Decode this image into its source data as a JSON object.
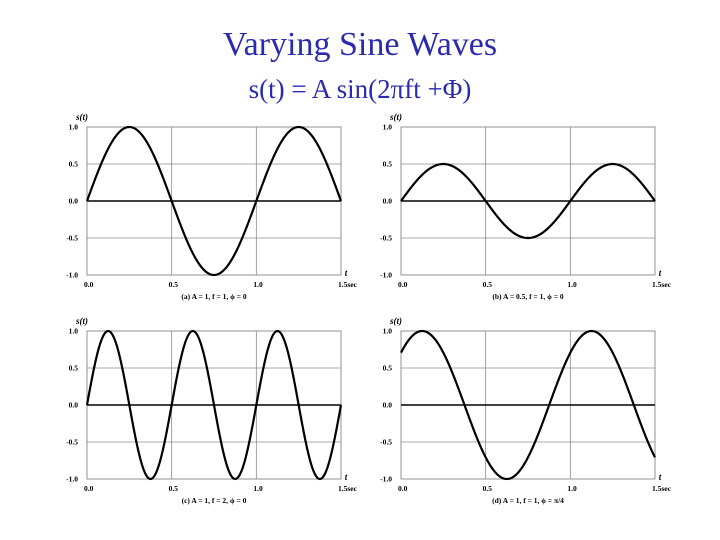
{
  "page": {
    "title": "Varying Sine Waves",
    "subtitle": "s(t) = A sin(2πft +Φ)"
  },
  "colors": {
    "title": "#2b2bb0",
    "curve": "#000000",
    "grid": "#8c8c8c",
    "axis": "#000000"
  },
  "chart_data": [
    {
      "type": "line",
      "id": "a",
      "ylabel": "s(t)",
      "xlabel": "t",
      "caption": "(a) A = 1, f = 1, ϕ = 0",
      "params": {
        "A": 1,
        "f": 1,
        "phi": 0
      },
      "xlim": [
        0,
        1.5
      ],
      "ylim": [
        -1,
        1
      ],
      "xticks": [
        "0.0",
        "0.5",
        "1.0",
        "1.5sec"
      ],
      "yticks": [
        "1.0",
        "0.5",
        "0.0",
        "-0.5",
        "-1.0"
      ],
      "x": [
        0,
        0.125,
        0.25,
        0.375,
        0.5,
        0.625,
        0.75,
        0.875,
        1.0,
        1.125,
        1.25,
        1.375,
        1.5
      ],
      "y": [
        0,
        0.71,
        1.0,
        0.71,
        0,
        -0.71,
        -1.0,
        -0.71,
        0,
        0.71,
        1.0,
        0.71,
        0
      ]
    },
    {
      "type": "line",
      "id": "b",
      "ylabel": "s(t)",
      "xlabel": "t",
      "caption": "(b) A = 0.5, f = 1, ϕ = 0",
      "params": {
        "A": 0.5,
        "f": 1,
        "phi": 0
      },
      "xlim": [
        0,
        1.5
      ],
      "ylim": [
        -1,
        1
      ],
      "xticks": [
        "0.0",
        "0.5",
        "1.0",
        "1.5sec"
      ],
      "yticks": [
        "1.0",
        "0.5",
        "0.0",
        "-0.5",
        "-1.0"
      ],
      "x": [
        0,
        0.125,
        0.25,
        0.375,
        0.5,
        0.625,
        0.75,
        0.875,
        1.0,
        1.125,
        1.25,
        1.375,
        1.5
      ],
      "y": [
        0,
        0.35,
        0.5,
        0.35,
        0,
        -0.35,
        -0.5,
        -0.35,
        0,
        0.35,
        0.5,
        0.35,
        0
      ]
    },
    {
      "type": "line",
      "id": "c",
      "ylabel": "s(t)",
      "xlabel": "t",
      "caption": "(c) A = 1, f = 2, ϕ = 0",
      "params": {
        "A": 1,
        "f": 2,
        "phi": 0
      },
      "xlim": [
        0,
        1.5
      ],
      "ylim": [
        -1,
        1
      ],
      "xticks": [
        "0.0",
        "0.5",
        "1.0",
        "1.5sec"
      ],
      "yticks": [
        "1.0",
        "0.5",
        "0.0",
        "-0.5",
        "-1.0"
      ],
      "x": [
        0,
        0.125,
        0.25,
        0.375,
        0.5,
        0.625,
        0.75,
        0.875,
        1.0,
        1.125,
        1.25,
        1.375,
        1.5
      ],
      "y": [
        0,
        1.0,
        0,
        -1.0,
        0,
        1.0,
        0,
        -1.0,
        0,
        1.0,
        0,
        -1.0,
        0
      ]
    },
    {
      "type": "line",
      "id": "d",
      "ylabel": "s(t)",
      "xlabel": "t",
      "caption": "(d) A = 1, f = 1, ϕ = π/4",
      "params": {
        "A": 1,
        "f": 1,
        "phi": 0.7854
      },
      "xlim": [
        0,
        1.5
      ],
      "ylim": [
        -1,
        1
      ],
      "xticks": [
        "0.0",
        "0.5",
        "1.0",
        "1.5sec"
      ],
      "yticks": [
        "1.0",
        "0.5",
        "0.0",
        "-0.5",
        "-1.0"
      ],
      "x": [
        0,
        0.125,
        0.25,
        0.375,
        0.5,
        0.625,
        0.75,
        0.875,
        1.0,
        1.125,
        1.25,
        1.375,
        1.5
      ],
      "y": [
        0.71,
        1.0,
        0.71,
        0,
        -0.71,
        -1.0,
        -0.71,
        0,
        0.71,
        1.0,
        0.71,
        0,
        -0.71
      ]
    }
  ]
}
